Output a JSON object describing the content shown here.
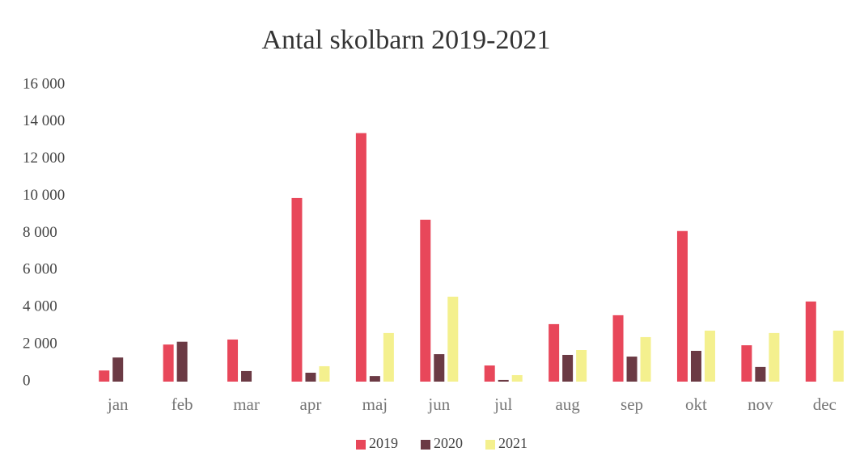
{
  "chart_data": {
    "type": "bar",
    "title": "Antal skolbarn 2019-2021",
    "categories": [
      "jan",
      "feb",
      "mar",
      "apr",
      "maj",
      "jun",
      "jul",
      "aug",
      "sep",
      "okt",
      "nov",
      "dec"
    ],
    "series": [
      {
        "name": "2019",
        "color": "#e8475a",
        "values": [
          600,
          2000,
          2270,
          9900,
          13400,
          8730,
          870,
          3100,
          3580,
          8120,
          1960,
          4320
        ]
      },
      {
        "name": "2020",
        "color": "#6b3a44",
        "values": [
          1300,
          2150,
          570,
          480,
          300,
          1480,
          90,
          1440,
          1350,
          1660,
          790,
          0
        ]
      },
      {
        "name": "2021",
        "color": "#f4f08e",
        "values": [
          0,
          0,
          0,
          830,
          2620,
          4580,
          350,
          1700,
          2400,
          2750,
          2620,
          2750
        ]
      }
    ],
    "ylim": [
      0,
      16000
    ],
    "yticks": [
      0,
      {
        "value": 2000,
        "label": "2 000"
      },
      {
        "value": 4000,
        "label": "4 000"
      },
      {
        "value": 6000,
        "label": "6 000"
      },
      {
        "value": 8000,
        "label": "8 000"
      },
      {
        "value": 10000,
        "label": "10 000"
      },
      {
        "value": 12000,
        "label": "12 000"
      },
      {
        "value": 14000,
        "label": "14 000"
      },
      {
        "value": 16000,
        "label": "16 000"
      }
    ],
    "grid": false,
    "legend": "bottom"
  }
}
